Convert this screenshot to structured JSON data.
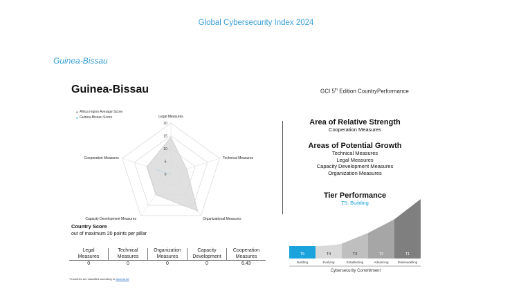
{
  "header": {
    "title": "Global Cybersecurity Index 2024"
  },
  "section": {
    "country_heading": "Guinea-Bissau"
  },
  "card": {
    "title": "Guinea-Bissau",
    "edition_prefix": "GCI 5",
    "edition_sup": "th",
    "edition_suffix": " Edition CountryPerformance"
  },
  "radar": {
    "legend": [
      {
        "label": "Africa region Average Score",
        "color": "#b5b5b5"
      },
      {
        "label": "Guinea-Bissau Score",
        "color": "#9ad4ec"
      }
    ],
    "ticks": [
      "20",
      "15",
      "10",
      "5",
      "0"
    ],
    "axis_labels": [
      "Legal Measures",
      "Technical Measures",
      "Organizational Measures",
      "Capacity Development Measures",
      "Cooperation Measures"
    ],
    "max": 20,
    "africa_average": [
      14.5,
      6.5,
      17.8,
      10.0,
      9.8
    ],
    "country_score": [
      0,
      0,
      0,
      0,
      6.43
    ]
  },
  "strength": {
    "title": "Area of Relative Strength",
    "items": [
      "Cooperation Measures"
    ]
  },
  "growth": {
    "title": "Areas of Potential Growth",
    "items": [
      "Technical Measures",
      "Legal Measures",
      "Capacity Development Measures",
      "Organization Measures"
    ]
  },
  "tier": {
    "title": "Tier Performance",
    "current": "T5: Building",
    "accent": "#1aa3dc",
    "steps": [
      {
        "code": "T5",
        "label": "Building",
        "fill": 0.08,
        "color": "#1aa3dc",
        "text": "#ffffff"
      },
      {
        "code": "T4",
        "label": "Evolving",
        "fill": 0.25,
        "color": "#d9d9d9",
        "text": "#333333"
      },
      {
        "code": "T3",
        "label": "Establishing",
        "fill": 0.43,
        "color": "#bfbfbf",
        "text": "#333333"
      },
      {
        "code": "T2",
        "label": "Advancing",
        "fill": 0.66,
        "color": "#a6a6a6",
        "text": "#ffffff"
      },
      {
        "code": "T1",
        "label": "Rolemodelling",
        "fill": 1.0,
        "color": "#7f7f7f",
        "text": "#ffffff"
      }
    ],
    "axis_label": "Cybersecurity Commitment"
  },
  "score": {
    "title": "Country Score",
    "subtitle": "out of maximum 20 points per pillar",
    "columns": [
      {
        "l1": "Legal",
        "l2": "Measures",
        "value": "0"
      },
      {
        "l1": "Technical",
        "l2": "Measures",
        "value": "0"
      },
      {
        "l1": "Organization",
        "l2": "Measures",
        "value": "0"
      },
      {
        "l1": "Capacity",
        "l2": "Development",
        "value": "0"
      },
      {
        "l1": "Cooperation",
        "l2": "Measures",
        "value": "6.43"
      }
    ]
  },
  "footnote": {
    "text": "*Countries are classified according to ",
    "link": "www.itu.int"
  }
}
